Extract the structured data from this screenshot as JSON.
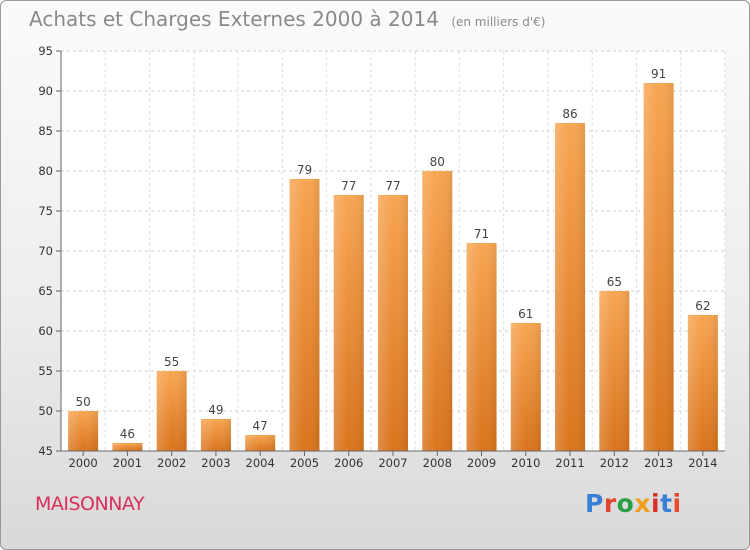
{
  "header": {
    "title": "Achats et Charges Externes 2000 à 2014",
    "unit": "(en milliers d'€)"
  },
  "footer": {
    "place": "MAISONNAY",
    "logo_text": "Proxiti",
    "logo_colors": [
      "#3a7fd6",
      "#e0462a",
      "#2e9e45",
      "#f0a020",
      "#d6302a",
      "#3a7fd6",
      "#e84a2a"
    ]
  },
  "chart_data": {
    "type": "bar",
    "categories": [
      "2000",
      "2001",
      "2002",
      "2003",
      "2004",
      "2005",
      "2006",
      "2007",
      "2008",
      "2009",
      "2010",
      "2011",
      "2012",
      "2013",
      "2014"
    ],
    "values": [
      50,
      46,
      55,
      49,
      47,
      79,
      77,
      77,
      80,
      71,
      61,
      86,
      65,
      91,
      62
    ],
    "title": "Achats et Charges Externes 2000 à 2014",
    "subtitle": "(en milliers d'€)",
    "xlabel": "",
    "ylabel": "",
    "ylim": [
      45,
      95
    ],
    "yticks": [
      45,
      50,
      55,
      60,
      65,
      70,
      75,
      80,
      85,
      90,
      95
    ],
    "grid": true,
    "bar_color_top": "#f7a552",
    "bar_color_bottom": "#d9741c"
  }
}
